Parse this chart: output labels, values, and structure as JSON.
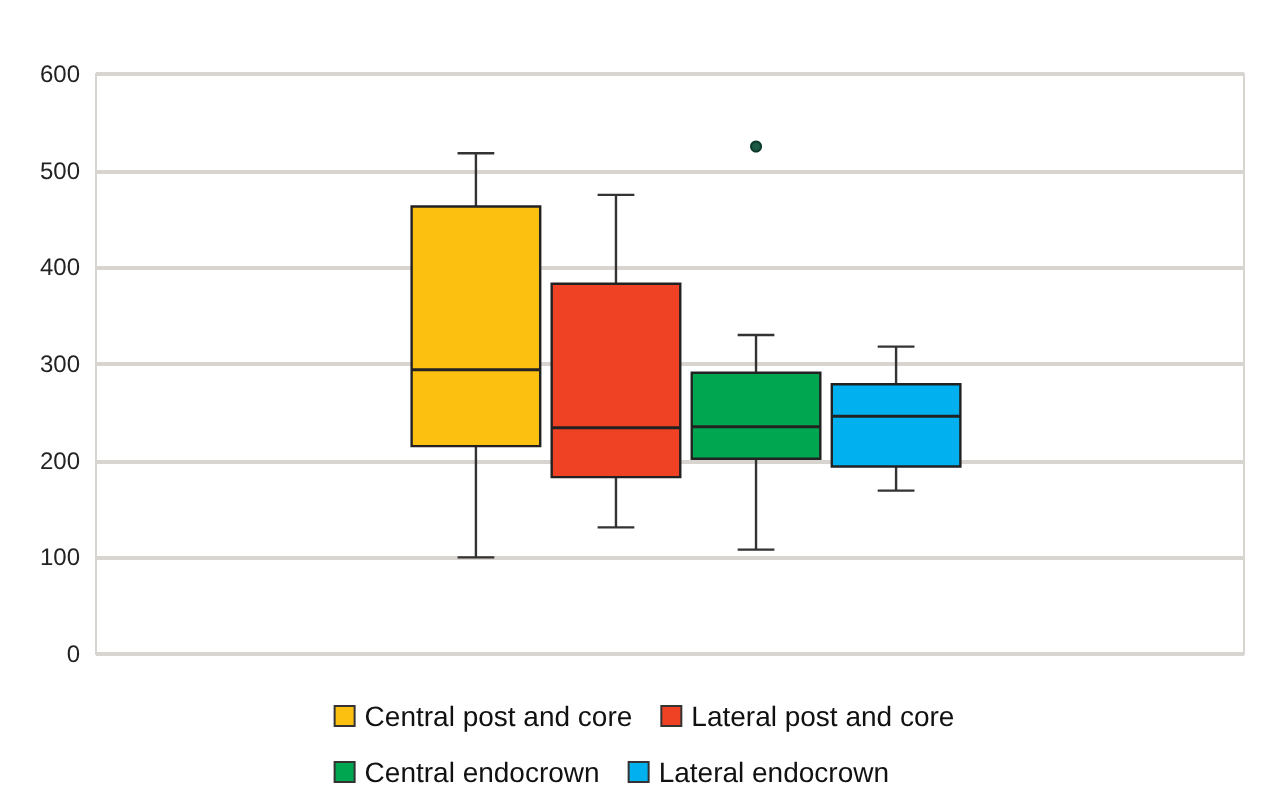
{
  "chart_data": {
    "type": "box",
    "categories": [
      null
    ],
    "series": [
      {
        "name": "Central post and core",
        "color": "#fcc010",
        "boxes": [
          {
            "low": 100,
            "q1": 215,
            "median": 294,
            "q3": 463,
            "high": 518
          }
        ]
      },
      {
        "name": "Lateral post and core",
        "color": "#ef4123",
        "boxes": [
          {
            "low": 131,
            "q1": 183,
            "median": 234,
            "q3": 383,
            "high": 475
          }
        ]
      },
      {
        "name": "Central endocrown",
        "color": "#00a650",
        "boxes": [
          {
            "low": 108,
            "q1": 202,
            "median": 235,
            "q3": 291,
            "high": 330,
            "outliers": [
              525
            ]
          }
        ]
      },
      {
        "name": "Lateral endocrown",
        "color": "#00b0ef",
        "boxes": [
          {
            "low": 169,
            "q1": 194,
            "median": 246,
            "q3": 279,
            "high": 318
          }
        ]
      }
    ],
    "ylim": [
      0,
      600
    ],
    "yticks": [
      0,
      100,
      200,
      300,
      400,
      500,
      600
    ],
    "grid": "y",
    "legend": "bottom"
  }
}
